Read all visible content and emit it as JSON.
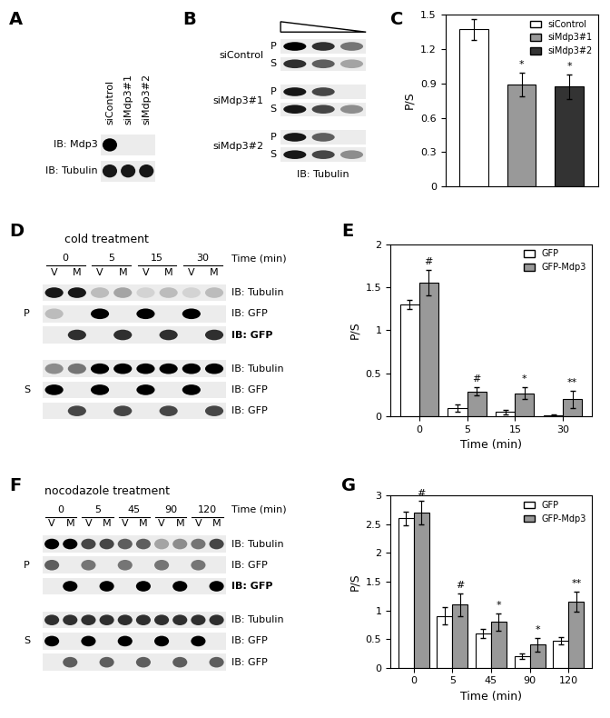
{
  "chart_data": [
    {
      "type": "bar",
      "panel": "C",
      "ylabel": "P/S",
      "categories": [
        "siControl",
        "siMdp3#1",
        "siMdp3#2"
      ],
      "values": [
        1.37,
        0.89,
        0.87
      ],
      "errors": [
        0.09,
        0.1,
        0.11
      ],
      "colors": [
        "#ffffff",
        "#999999",
        "#333333"
      ],
      "significance": [
        null,
        "*",
        "*"
      ],
      "ylim": [
        0,
        1.5
      ],
      "yticks": [
        0,
        0.3,
        0.6,
        0.9,
        1.2,
        1.5
      ],
      "legend": "upper right",
      "tick_labels": "y"
    },
    {
      "type": "bar",
      "panel": "E",
      "xlabel": "Time (min)",
      "ylabel": "P/S",
      "categories": [
        "0",
        "5",
        "15",
        "30"
      ],
      "series": [
        {
          "name": "GFP",
          "color": "#ffffff",
          "values": [
            1.3,
            0.1,
            0.05,
            0.01
          ],
          "errors": [
            0.05,
            0.04,
            0.03,
            0.01
          ]
        },
        {
          "name": "GFP-Mdp3",
          "color": "#999999",
          "values": [
            1.55,
            0.29,
            0.27,
            0.2
          ],
          "errors": [
            0.15,
            0.05,
            0.07,
            0.1
          ]
        }
      ],
      "significance": [
        "#",
        "#",
        "*",
        "**"
      ],
      "ylim": [
        0,
        2
      ],
      "yticks": [
        0,
        0.5,
        1,
        1.5,
        2
      ],
      "legend": "upper right"
    },
    {
      "type": "bar",
      "panel": "G",
      "xlabel": "Time (min)",
      "ylabel": "P/S",
      "categories": [
        "0",
        "5",
        "45",
        "90",
        "120"
      ],
      "series": [
        {
          "name": "GFP",
          "color": "#ffffff",
          "values": [
            2.6,
            0.9,
            0.6,
            0.2,
            0.47
          ],
          "errors": [
            0.12,
            0.15,
            0.08,
            0.05,
            0.06
          ]
        },
        {
          "name": "GFP-Mdp3",
          "color": "#999999",
          "values": [
            2.7,
            1.1,
            0.8,
            0.4,
            1.15
          ],
          "errors": [
            0.2,
            0.2,
            0.15,
            0.12,
            0.18
          ]
        }
      ],
      "significance": [
        "#",
        "#",
        "*",
        "*",
        "**"
      ],
      "ylim": [
        0,
        3
      ],
      "yticks": [
        0,
        0.5,
        1,
        1.5,
        2,
        2.5,
        3
      ],
      "legend": "upper right"
    }
  ],
  "blots": {
    "A": {
      "lanes": [
        "siControl",
        "siMdp3#1",
        "siMdp3#2"
      ],
      "rows": [
        {
          "label": "IB: Mdp3",
          "bands": [
            1,
            0,
            0
          ]
        },
        {
          "label": "IB: Tubulin",
          "bands": [
            0.9,
            0.9,
            0.9
          ]
        }
      ]
    },
    "B": {
      "groups": [
        {
          "name": "siControl",
          "rows": [
            {
              "label": "P",
              "bands": [
                1,
                0.8,
                0.5
              ]
            },
            {
              "label": "S",
              "bands": [
                0.8,
                0.6,
                0.3
              ]
            }
          ]
        },
        {
          "name": "siMdp3#1",
          "rows": [
            {
              "label": "P",
              "bands": [
                0.9,
                0.7,
                0
              ]
            },
            {
              "label": "S",
              "bands": [
                0.9,
                0.7,
                0.4
              ]
            }
          ]
        },
        {
          "name": "siMdp3#2",
          "rows": [
            {
              "label": "P",
              "bands": [
                0.9,
                0.6,
                0
              ]
            },
            {
              "label": "S",
              "bands": [
                0.9,
                0.7,
                0.4
              ]
            }
          ]
        }
      ],
      "footer": "IB: Tubulin"
    },
    "D": {
      "title": "cold treatment",
      "times": [
        "0",
        "5",
        "15",
        "30"
      ],
      "lanes": [
        "V",
        "M"
      ],
      "time_label": "Time (min)",
      "sections": [
        {
          "name": "P",
          "rows": [
            {
              "label": "IB: Tubulin",
              "bands": [
                0.9,
                0.9,
                0.2,
                0.3,
                0.1,
                0.2,
                0.1,
                0.2
              ]
            },
            {
              "label": "IB: GFP",
              "bands": [
                0.2,
                0,
                1,
                0,
                1,
                0,
                1,
                0
              ]
            },
            {
              "label": "IB: GFP",
              "bands": [
                0,
                0.8,
                0,
                0.8,
                0,
                0.8,
                0,
                0.8
              ]
            }
          ]
        },
        {
          "name": "S",
          "rows": [
            {
              "label": "IB: Tubulin",
              "bands": [
                0.4,
                0.5,
                1,
                1,
                1,
                1,
                1,
                1
              ]
            },
            {
              "label": "IB: GFP",
              "bands": [
                1,
                0,
                1,
                0,
                1,
                0,
                1,
                0
              ]
            },
            {
              "label": "IB: GFP",
              "bands": [
                0,
                0.7,
                0,
                0.7,
                0,
                0.7,
                0,
                0.7
              ]
            }
          ]
        }
      ]
    },
    "F": {
      "title": "nocodazole treatment",
      "times": [
        "0",
        "5",
        "45",
        "90",
        "120"
      ],
      "lanes": [
        "V",
        "M"
      ],
      "time_label": "Time (min)",
      "sections": [
        {
          "name": "P",
          "rows": [
            {
              "label": "IB: Tubulin",
              "bands": [
                1,
                1,
                0.7,
                0.7,
                0.6,
                0.6,
                0.3,
                0.4,
                0.5,
                0.7
              ]
            },
            {
              "label": "IB: GFP",
              "bands": [
                0.6,
                0,
                0.5,
                0,
                0.5,
                0,
                0.5,
                0,
                0.5,
                0
              ]
            },
            {
              "label": "IB: GFP",
              "bands": [
                0,
                1,
                0,
                1,
                0,
                1,
                0,
                1,
                0,
                1
              ]
            }
          ]
        },
        {
          "name": "S",
          "rows": [
            {
              "label": "IB: Tubulin",
              "bands": [
                0.8,
                0.8,
                0.8,
                0.8,
                0.8,
                0.8,
                0.8,
                0.8,
                0.8,
                0.8
              ]
            },
            {
              "label": "IB: GFP",
              "bands": [
                1,
                0,
                1,
                0,
                1,
                0,
                1,
                0,
                1,
                0
              ]
            },
            {
              "label": "IB: GFP",
              "bands": [
                0,
                0.6,
                0,
                0.6,
                0,
                0.6,
                0,
                0.6,
                0,
                0.6
              ]
            }
          ]
        }
      ]
    }
  }
}
